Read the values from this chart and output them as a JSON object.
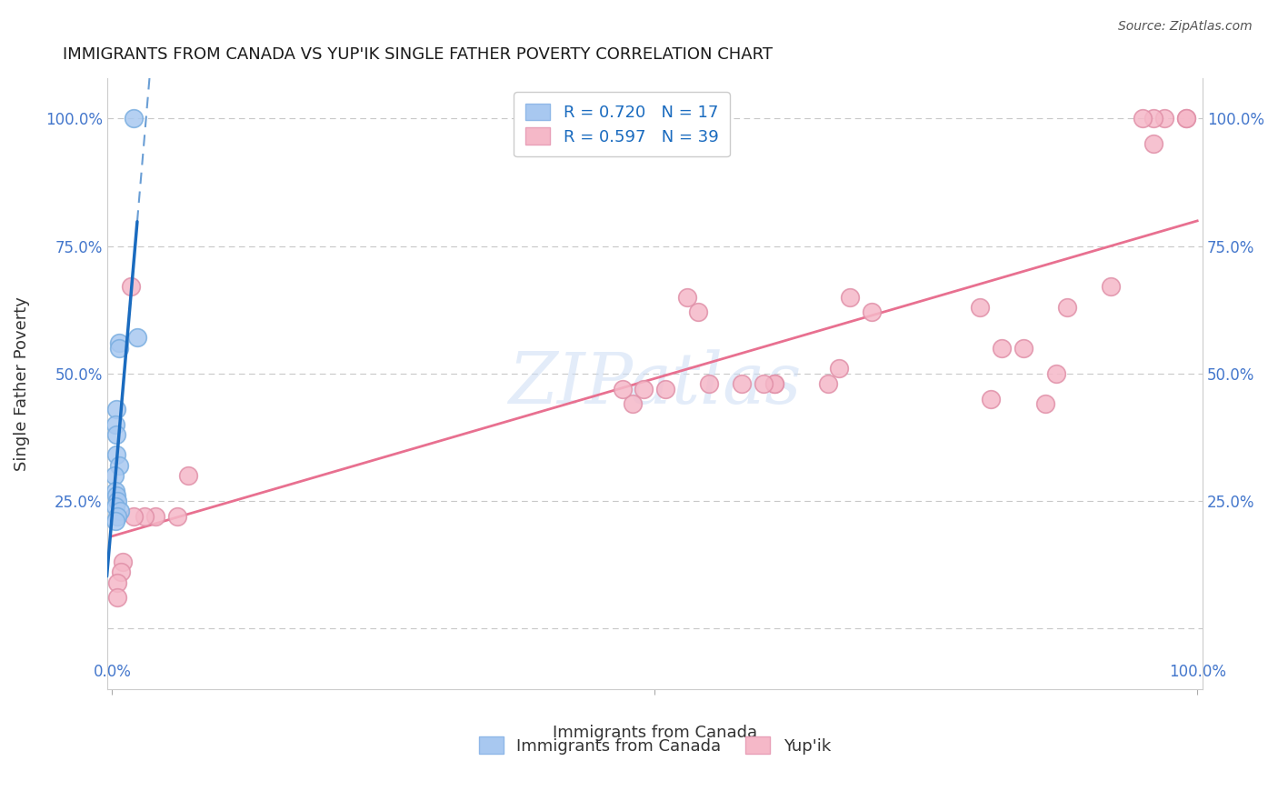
{
  "title": "IMMIGRANTS FROM CANADA VS YUP'IK SINGLE FATHER POVERTY CORRELATION CHART",
  "source": "Source: ZipAtlas.com",
  "ylabel": "Single Father Poverty",
  "legend_label1": "R = 0.720   N = 17",
  "legend_label2": "R = 0.597   N = 39",
  "legend_color1": "#a8c8f0",
  "legend_color2": "#f5b8c8",
  "watermark": "ZIPatlas",
  "blue_x": [
    0.02,
    0.023,
    0.006,
    0.006,
    0.004,
    0.003,
    0.004,
    0.004,
    0.006,
    0.002,
    0.003,
    0.004,
    0.005,
    0.003,
    0.007,
    0.005,
    0.003
  ],
  "blue_y": [
    1.0,
    0.57,
    0.56,
    0.55,
    0.43,
    0.4,
    0.38,
    0.34,
    0.32,
    0.3,
    0.27,
    0.26,
    0.25,
    0.24,
    0.23,
    0.22,
    0.21
  ],
  "pink_x": [
    0.017,
    0.99,
    0.99,
    0.97,
    0.96,
    0.96,
    0.95,
    0.92,
    0.88,
    0.87,
    0.86,
    0.84,
    0.82,
    0.81,
    0.8,
    0.7,
    0.68,
    0.67,
    0.66,
    0.61,
    0.61,
    0.6,
    0.58,
    0.55,
    0.54,
    0.53,
    0.51,
    0.49,
    0.48,
    0.47,
    0.07,
    0.06,
    0.04,
    0.03,
    0.02,
    0.01,
    0.008,
    0.005,
    0.005
  ],
  "pink_y": [
    0.67,
    1.0,
    1.0,
    1.0,
    1.0,
    0.95,
    1.0,
    0.67,
    0.63,
    0.5,
    0.44,
    0.55,
    0.55,
    0.45,
    0.63,
    0.62,
    0.65,
    0.51,
    0.48,
    0.48,
    0.48,
    0.48,
    0.48,
    0.48,
    0.62,
    0.65,
    0.47,
    0.47,
    0.44,
    0.47,
    0.3,
    0.22,
    0.22,
    0.22,
    0.22,
    0.13,
    0.11,
    0.09,
    0.06
  ],
  "blue_line_color": "#1a6bbf",
  "pink_line_color": "#e87090",
  "background_color": "#ffffff",
  "grid_color": "#c8c8c8",
  "xlim": [
    -0.005,
    1.005
  ],
  "ylim": [
    -0.12,
    1.08
  ],
  "yticks": [
    0.0,
    0.25,
    0.5,
    0.75,
    1.0
  ],
  "ytick_labels": [
    "",
    "25.0%",
    "50.0%",
    "75.0%",
    "100.0%"
  ]
}
